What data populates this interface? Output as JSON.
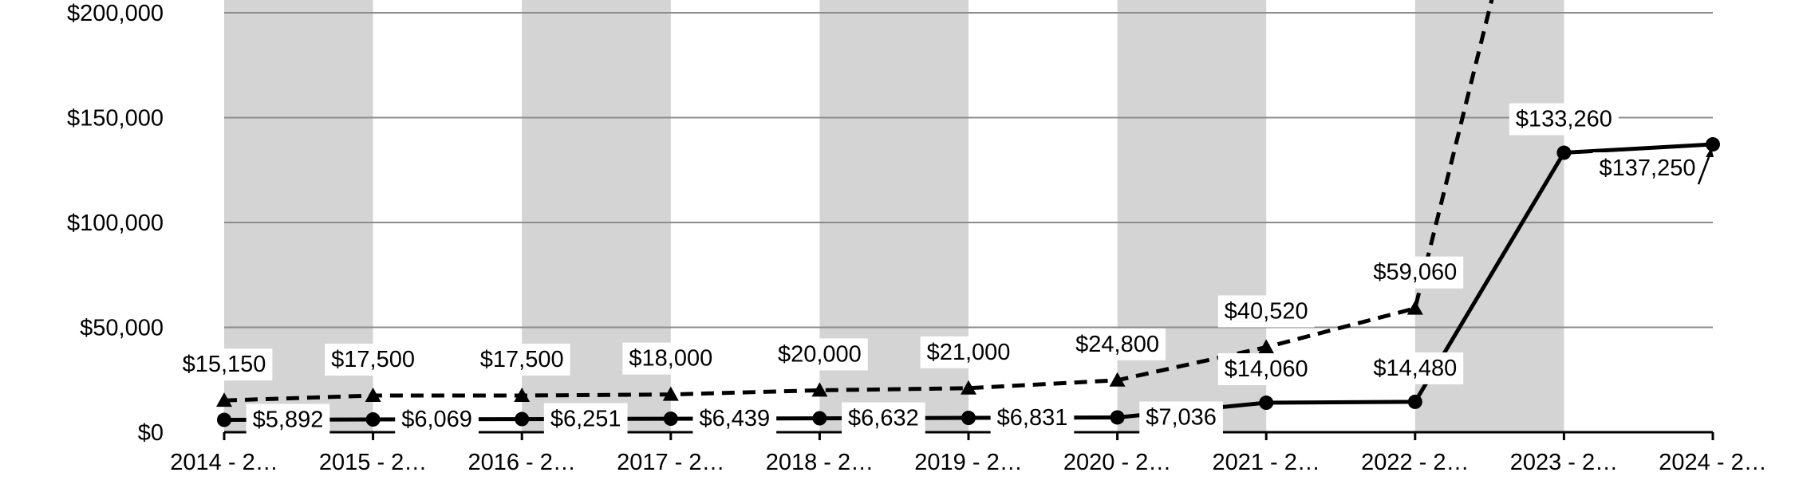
{
  "chart_data": {
    "type": "line",
    "categories": [
      "2014 - 2…",
      "2015 - 2…",
      "2016 - 2…",
      "2017 - 2…",
      "2018 - 2…",
      "2019 - 2…",
      "2020 - 2…",
      "2021 - 2…",
      "2022 - 2…",
      "2023 - 2…",
      "2024 - 2…"
    ],
    "ylim": [
      0,
      200000
    ],
    "y_ticks": [
      {
        "value": 0,
        "label": "$0"
      },
      {
        "value": 50000,
        "label": "$50,000"
      },
      {
        "value": 100000,
        "label": "$100,000"
      },
      {
        "value": 150000,
        "label": "$150,000"
      },
      {
        "value": 200000,
        "label": "$200,000"
      }
    ],
    "grid": true,
    "alternating_band_color": "#d4d4d4",
    "series": [
      {
        "marker": "triangle",
        "line_style": "dashed",
        "color": "#000000",
        "values": [
          15150,
          17500,
          17500,
          18000,
          20000,
          21000,
          24800,
          40520,
          59060,
          null,
          null
        ],
        "labels": [
          "$15,150",
          "$17,500",
          "$17,500",
          "$18,000",
          "$20,000",
          "$21,000",
          "$24,800",
          "$40,520",
          "$59,060",
          "",
          ""
        ],
        "exits_above_axis": true
      },
      {
        "marker": "circle",
        "line_style": "solid",
        "color": "#000000",
        "values": [
          5892,
          6069,
          6251,
          6439,
          6632,
          6831,
          7036,
          14060,
          14480,
          133260,
          137250
        ],
        "labels": [
          "$5,892",
          "$6,069",
          "$6,251",
          "$6,439",
          "$6,632",
          "$6,831",
          "$7,036",
          "$14,060",
          "$14,480",
          "$133,260",
          "$137,250"
        ]
      }
    ]
  }
}
